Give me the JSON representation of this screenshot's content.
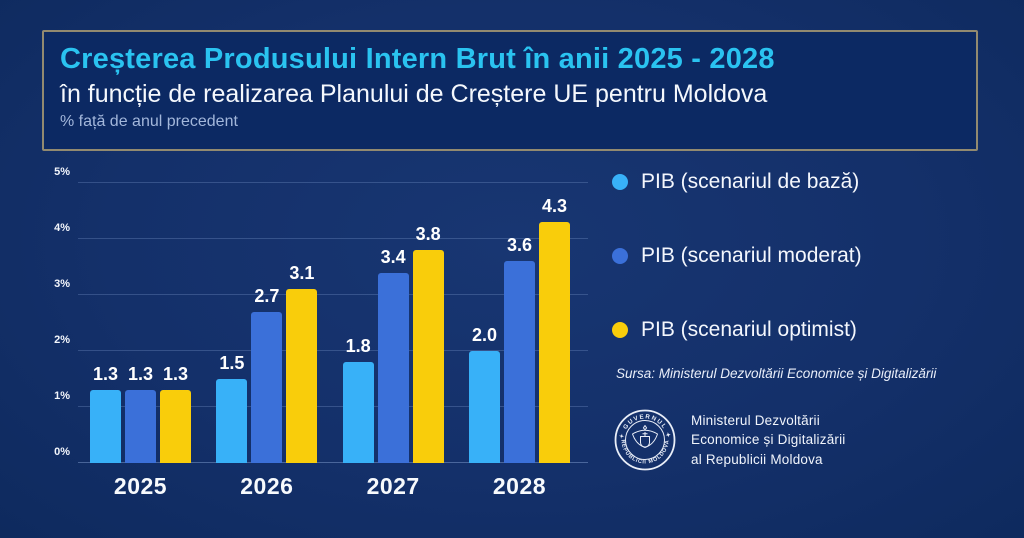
{
  "header": {
    "title": "Creșterea Produsului Intern Brut în anii 2025 - 2028",
    "subtitle": "în funcție de realizarea Planului de Creștere UE pentru Moldova",
    "note": "% față de anul precedent",
    "title_color": "#2ac3f0",
    "border_color": "#928a70"
  },
  "chart_data": {
    "type": "bar",
    "title": "Creșterea Produsului Intern Brut în anii 2025 - 2028",
    "subtitle": "în funcție de realizarea Planului de Creștere UE pentru Moldova",
    "ylabel": "% față de anul precedent",
    "xlabel": "",
    "categories": [
      "2025",
      "2026",
      "2027",
      "2028"
    ],
    "series": [
      {
        "name": "PIB (scenariul de bază)",
        "color": "#38b1f8",
        "values": [
          1.3,
          1.5,
          1.8,
          2.0
        ]
      },
      {
        "name": "PIB (scenariul moderat)",
        "color": "#3b70d9",
        "values": [
          1.3,
          2.7,
          3.4,
          3.6
        ]
      },
      {
        "name": "PIB (scenariul optimist)",
        "color": "#f9cd0b",
        "values": [
          1.3,
          3.1,
          3.8,
          4.3
        ]
      }
    ],
    "ylim": [
      0,
      5
    ],
    "yticks": [
      "0%",
      "1%",
      "2%",
      "3%",
      "4%",
      "5%"
    ],
    "grid": true,
    "legend_position": "right",
    "value_labels_shown": true
  },
  "source": "Sursa: Ministerul Dezvoltării Economice și Digitalizării",
  "footer_logo": {
    "seal_text_top": "GUVERNUL",
    "seal_text_bottom": "REPUBLICII MOLDOVA",
    "org_lines": {
      "0": "Ministerul Dezvoltării",
      "1": "Economice și Digitalizării",
      "2": "al Republicii Moldova"
    }
  }
}
